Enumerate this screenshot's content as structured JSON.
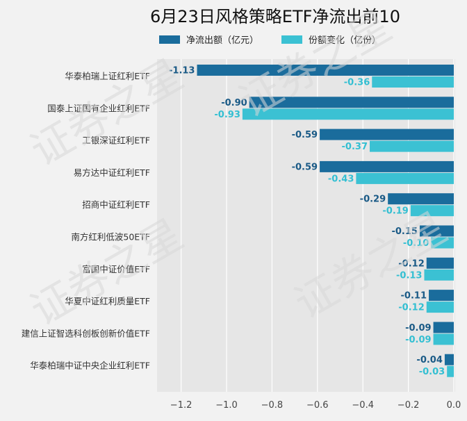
{
  "chart_data": {
    "type": "bar",
    "orientation": "horizontal",
    "title": "6月23日风格策略ETF净流出前10",
    "categories": [
      "华泰柏瑞上证红利ETF",
      "国泰上证国有企业红利ETF",
      "工银深证红利ETF",
      "易方达中证红利ETF",
      "招商中证红利ETF",
      "南方红利低波50ETF",
      "富国中证价值ETF",
      "华夏中证红利质量ETF",
      "建信上证智选科创板创新价值ETF",
      "华泰柏瑞中证中央企业红利ETF"
    ],
    "series": [
      {
        "name": "净流出额（亿元）",
        "color": "#1a6c9c",
        "values": [
          -1.13,
          -0.9,
          -0.59,
          -0.59,
          -0.29,
          -0.15,
          -0.12,
          -0.11,
          -0.09,
          -0.04
        ]
      },
      {
        "name": "份额变化（亿份）",
        "color": "#3bc1d3",
        "values": [
          -0.36,
          -0.93,
          -0.37,
          -0.43,
          -0.19,
          -0.1,
          -0.13,
          -0.12,
          -0.09,
          -0.03
        ]
      }
    ],
    "xlim": [
      -1.3,
      0
    ],
    "xticks": [
      -1.2,
      -1.0,
      -0.8,
      -0.6,
      -0.4,
      -0.2,
      0.0
    ],
    "xtick_labels": [
      "−1.2",
      "−1.0",
      "−0.8",
      "−0.6",
      "−0.4",
      "−0.2",
      "0.0"
    ],
    "legend_position": "top",
    "grid": true,
    "watermark": "证券之星"
  }
}
